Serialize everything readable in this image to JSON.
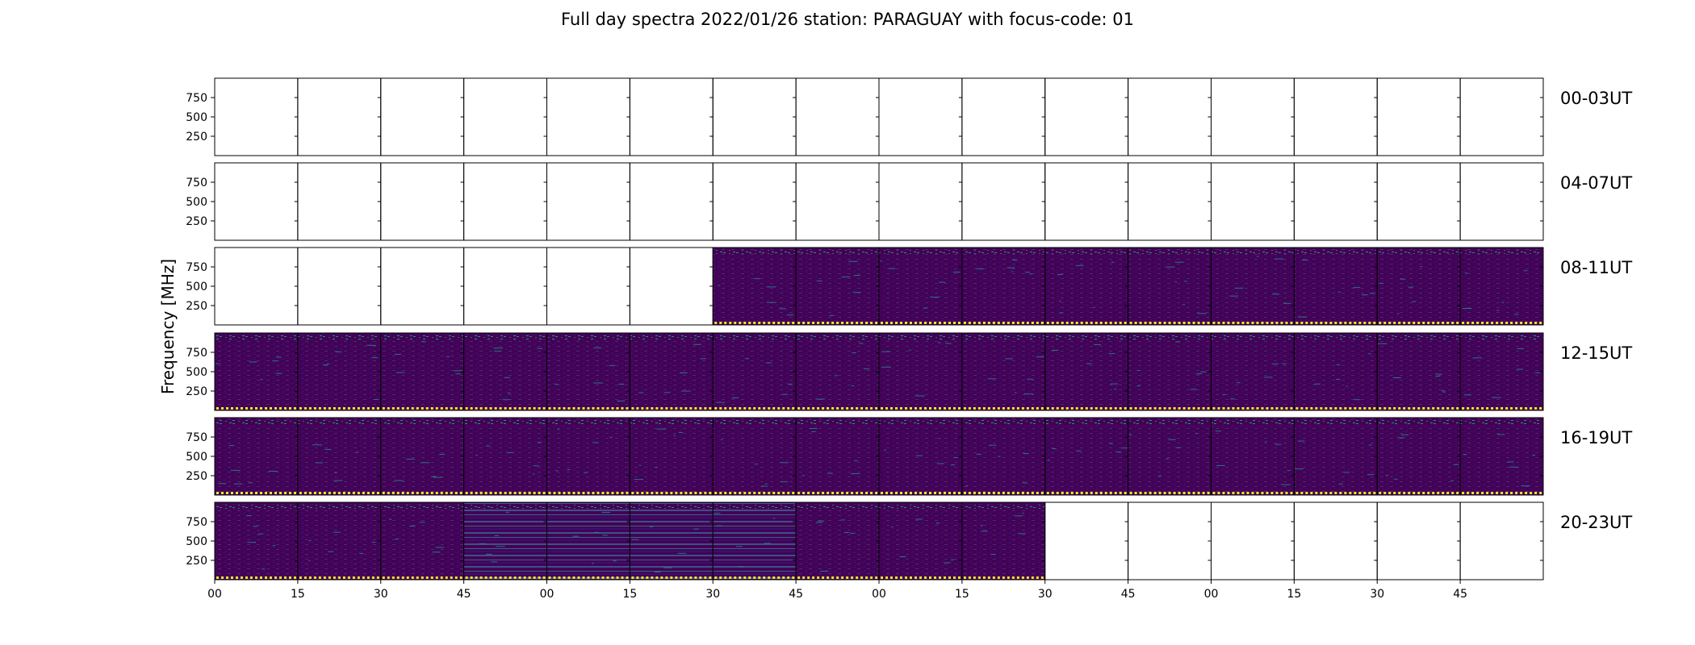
{
  "chart_data": {
    "type": "heatmap",
    "title": "Full day spectra 2022/01/26 station: PARAGUAY with focus-code: 01",
    "ylabel": "Frequency [MHz]",
    "yticks": [
      "750",
      "500",
      "250"
    ],
    "ytick_values": [
      750,
      500,
      250
    ],
    "ylim": [
      0,
      1000
    ],
    "xticks": [
      "00",
      "15",
      "30",
      "45",
      "00",
      "15",
      "30",
      "45",
      "00",
      "15",
      "30",
      "45",
      "00",
      "15",
      "30",
      "45"
    ],
    "rows": [
      {
        "label": "00-03UT",
        "filled_panels": []
      },
      {
        "label": "04-07UT",
        "filled_panels": []
      },
      {
        "label": "08-11UT",
        "filled_panels": [
          6,
          7,
          8,
          9,
          10,
          11,
          12,
          13,
          14,
          15
        ]
      },
      {
        "label": "12-15UT",
        "filled_panels": [
          0,
          1,
          2,
          3,
          4,
          5,
          6,
          7,
          8,
          9,
          10,
          11,
          12,
          13,
          14,
          15
        ]
      },
      {
        "label": "16-19UT",
        "filled_panels": [
          0,
          1,
          2,
          3,
          4,
          5,
          6,
          7,
          8,
          9,
          10,
          11,
          12,
          13,
          14,
          15
        ]
      },
      {
        "label": "20-23UT",
        "filled_panels": [
          0,
          1,
          2,
          3,
          4,
          5,
          6,
          7,
          8,
          9
        ]
      }
    ],
    "panels_per_row": 16,
    "colors": {
      "background": "#440154",
      "texture": [
        "#3b0f70",
        "#472c7a",
        "#3a528b"
      ],
      "speckle": "#21918c",
      "baseline": "#fde725"
    }
  }
}
